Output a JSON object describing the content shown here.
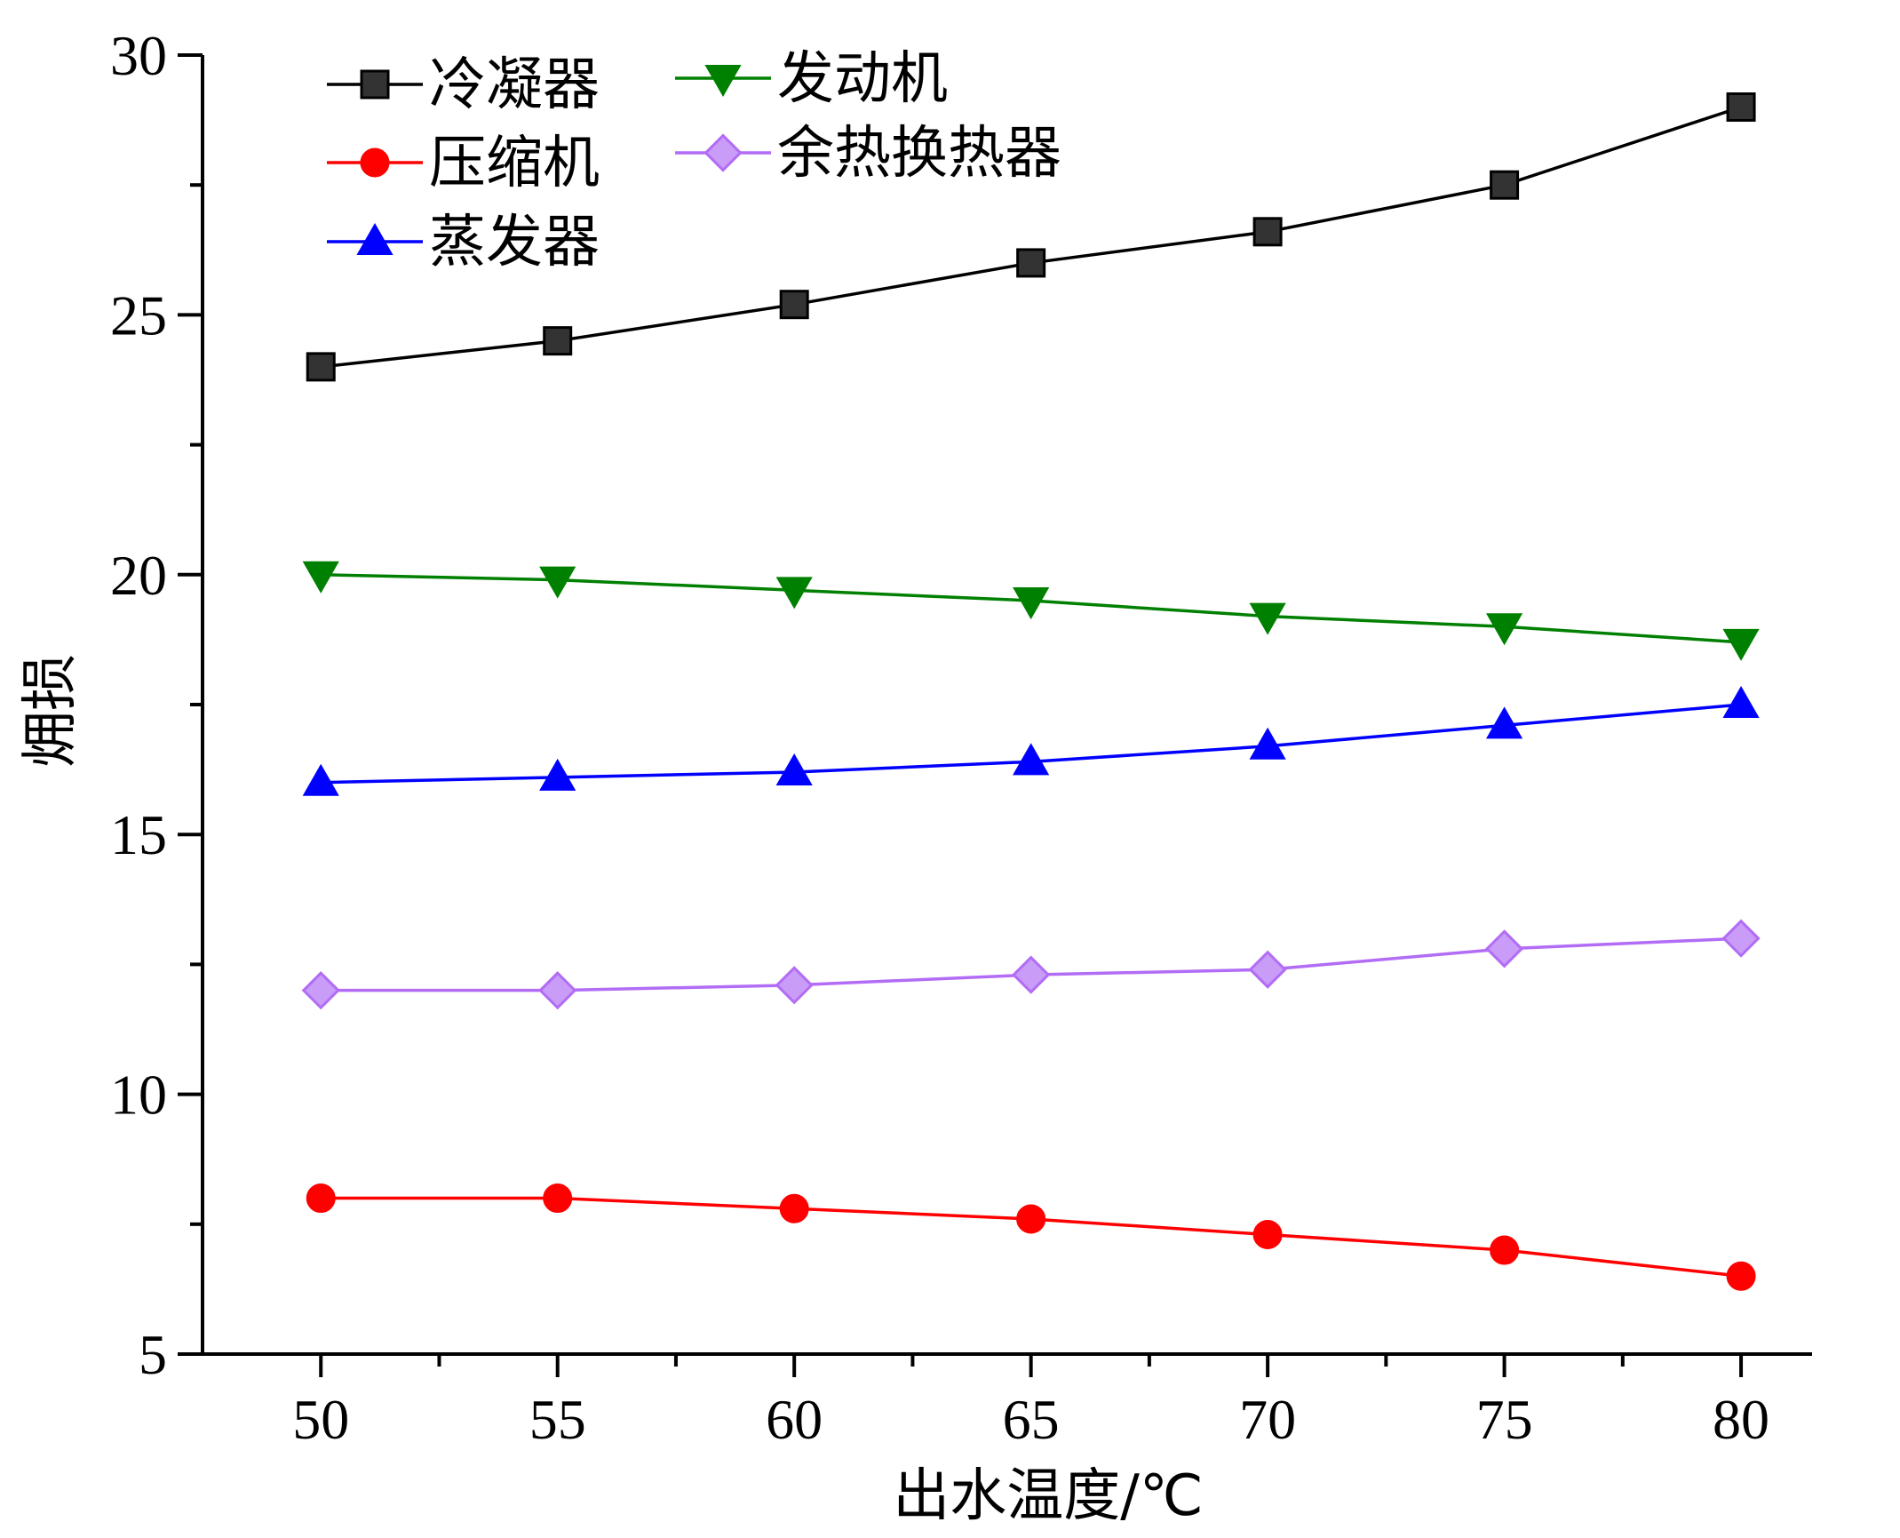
{
  "chart_data": {
    "type": "line",
    "title": "",
    "xlabel": "出水温度/℃",
    "ylabel": "㶲损",
    "xlim": [
      47.5,
      81.5
    ],
    "ylim": [
      5,
      30
    ],
    "x_ticks": [
      50,
      55,
      60,
      65,
      70,
      75,
      80
    ],
    "y_ticks": [
      5,
      10,
      15,
      20,
      25,
      30
    ],
    "grid": false,
    "legend_position": "top-left",
    "x": [
      50,
      55,
      60,
      65,
      70,
      75,
      80
    ],
    "series": [
      {
        "name": "冷凝器",
        "color": "#000000",
        "marker": "square",
        "values": [
          24.0,
          24.5,
          25.2,
          26.0,
          26.6,
          27.5,
          29.0
        ]
      },
      {
        "name": "压缩机",
        "color": "#ff0000",
        "marker": "circle",
        "values": [
          8.0,
          8.0,
          7.8,
          7.6,
          7.3,
          7.0,
          6.5
        ]
      },
      {
        "name": "蒸发器",
        "color": "#0000ff",
        "marker": "triangle-up",
        "values": [
          16.0,
          16.1,
          16.2,
          16.4,
          16.7,
          17.1,
          17.5
        ]
      },
      {
        "name": "发动机",
        "color": "#008000",
        "marker": "triangle-down",
        "values": [
          20.0,
          19.9,
          19.7,
          19.5,
          19.2,
          19.0,
          18.7
        ]
      },
      {
        "name": "余热换热器",
        "color": "#b26cf5",
        "marker": "diamond",
        "values": [
          12.0,
          12.0,
          12.1,
          12.3,
          12.4,
          12.8,
          13.0
        ]
      }
    ]
  }
}
